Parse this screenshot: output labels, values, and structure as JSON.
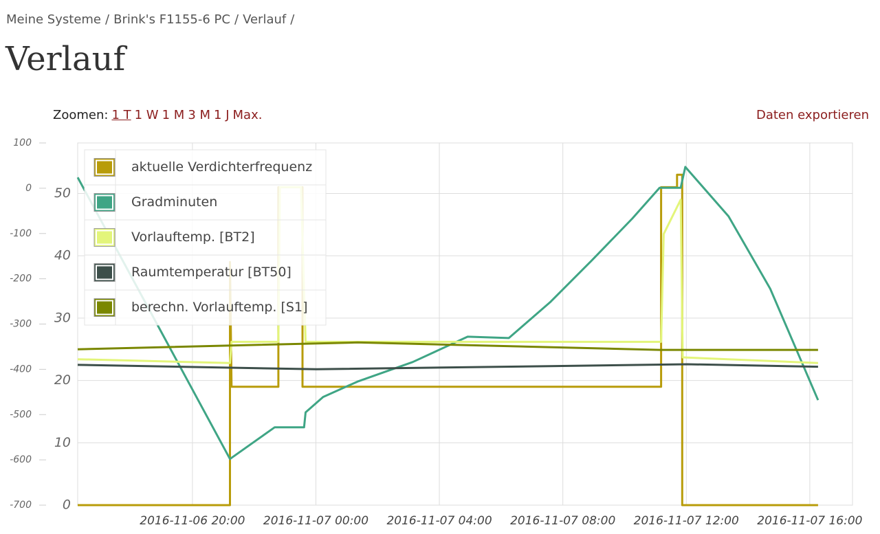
{
  "breadcrumb": {
    "items": [
      "Meine Systeme",
      "Brink's F1155-6 PC",
      "Verlauf"
    ],
    "separator": "/"
  },
  "heading": "Verlauf",
  "zoom": {
    "label": "Zoomen:",
    "options": [
      "1 T",
      "1 W",
      "1 M",
      "3 M",
      "1 J",
      "Max."
    ],
    "active": 0
  },
  "export": "Daten exportieren",
  "chart_data": {
    "type": "line",
    "xlim": [
      "2016-11-06 16:17",
      "2016-11-07 17:23"
    ],
    "xticks": [
      "2016-11-06 20:00",
      "2016-11-07 00:00",
      "2016-11-07 04:00",
      "2016-11-07 08:00",
      "2016-11-07 12:00",
      "2016-11-07 16:00"
    ],
    "ylim": [
      0,
      58.1
    ],
    "yticks": [
      0,
      10,
      20,
      30,
      40,
      50
    ],
    "y2lim": [
      -700,
      100
    ],
    "y2ticks": [
      -700,
      -600,
      -500,
      -400,
      -300,
      -200,
      -100,
      0,
      100
    ],
    "grid": true,
    "legend": "upper left",
    "series": [
      {
        "name": "aktuelle Verdichterfrequenz",
        "color": "#b89c0a",
        "x": [
          "2016-11-06 16:17",
          "2016-11-06 21:13",
          "2016-11-06 21:13",
          "2016-11-06 21:16",
          "2016-11-06 22:47",
          "2016-11-06 22:47",
          "2016-11-06 23:34",
          "2016-11-06 23:34",
          "2016-11-07 11:11",
          "2016-11-07 11:11",
          "2016-11-07 11:42",
          "2016-11-07 11:42",
          "2016-11-07 11:52",
          "2016-11-07 11:52",
          "2016-11-07 16:16"
        ],
        "values": [
          0,
          0,
          39,
          19,
          19,
          51,
          51,
          19,
          19,
          51,
          51,
          53,
          53,
          0,
          0
        ]
      },
      {
        "name": "Gradminuten",
        "color": "#3fa585",
        "axis": "y2",
        "x": [
          "2016-11-06 16:17",
          "2016-11-06 21:13",
          "2016-11-06 22:40",
          "2016-11-06 23:37",
          "2016-11-06 23:40",
          "2016-11-07 00:14",
          "2016-11-07 01:21",
          "2016-11-07 03:08",
          "2016-11-07 04:55",
          "2016-11-07 06:15",
          "2016-11-07 07:35",
          "2016-11-07 08:55",
          "2016-11-07 10:15",
          "2016-11-07 11:08",
          "2016-11-07 11:49",
          "2016-11-07 11:58",
          "2016-11-07 13:22",
          "2016-11-07 14:43",
          "2016-11-07 16:16"
        ],
        "values": [
          24,
          -598,
          -528,
          -528,
          -495,
          -461,
          -427,
          -384,
          -328,
          -331,
          -252,
          -161,
          -67,
          1,
          1,
          47,
          -62,
          -222,
          -468
        ]
      },
      {
        "name": "Vorlauftemp. [BT2]",
        "color": "#e3f57a",
        "x": [
          "2016-11-06 16:17",
          "2016-11-06 21:13",
          "2016-11-06 21:16",
          "2016-11-06 22:47",
          "2016-11-06 22:50",
          "2016-11-06 23:31",
          "2016-11-06 23:40",
          "2016-11-07 11:11",
          "2016-11-07 11:16",
          "2016-11-07 11:49",
          "2016-11-07 11:53",
          "2016-11-07 16:16"
        ],
        "values": [
          23.4,
          22.8,
          26.2,
          26.2,
          51,
          51,
          26.2,
          26.2,
          43.5,
          49,
          23.7,
          22.8
        ]
      },
      {
        "name": "Raumtemperatur [BT50]",
        "color": "#3d4f4a",
        "x": [
          "2016-11-06 16:17",
          "2016-11-07 00:01",
          "2016-11-07 07:35",
          "2016-11-07 12:02",
          "2016-11-07 16:16"
        ],
        "values": [
          22.5,
          21.8,
          22.3,
          22.6,
          22.2
        ]
      },
      {
        "name": "berechn. Vorlauftemp. [S1]",
        "color": "#7a8700",
        "x": [
          "2016-11-06 16:17",
          "2016-11-07 01:21",
          "2016-11-07 11:08",
          "2016-11-07 16:16"
        ],
        "values": [
          25.0,
          26.1,
          24.9,
          24.9
        ]
      }
    ]
  }
}
